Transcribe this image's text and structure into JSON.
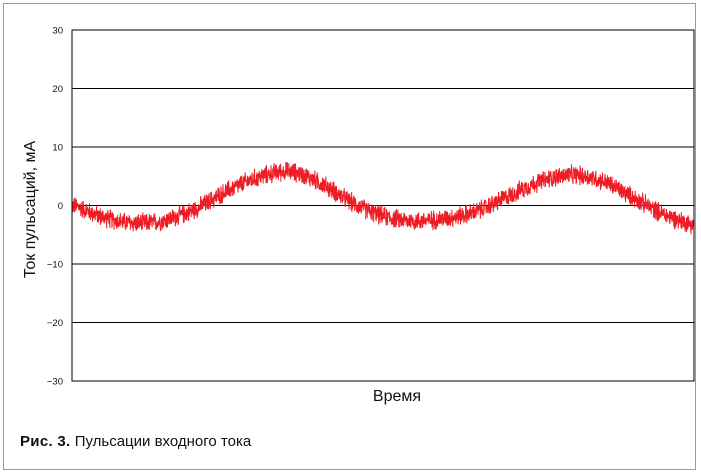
{
  "figure": {
    "label": "Рис. 3.",
    "caption": "Пульсации входного тока"
  },
  "colors": {
    "series": "#ee1c25",
    "grid": "#000000",
    "frame": "#9a9a9a"
  },
  "chart_data": {
    "type": "line",
    "title": "",
    "xlabel": "Время",
    "ylabel": "Ток пульсаций, мА",
    "ylim": [
      -30,
      30
    ],
    "yticks": [
      {
        "v": 30,
        "label": "30"
      },
      {
        "v": 20,
        "label": "20"
      },
      {
        "v": 10,
        "label": "10"
      },
      {
        "v": 0,
        "label": "0"
      },
      {
        "v": -10,
        "label": "−10"
      },
      {
        "v": -20,
        "label": "−20"
      },
      {
        "v": -30,
        "label": "−30"
      }
    ],
    "xlim": [
      0,
      1
    ],
    "grid": true,
    "legend": "none",
    "series": [
      {
        "x": [
          0,
          0.05,
          0.1,
          0.15,
          0.2,
          0.25,
          0.3,
          0.35,
          0.4,
          0.45,
          0.5,
          0.55,
          0.6,
          0.65,
          0.7,
          0.75,
          0.8,
          0.85,
          0.9,
          0.95,
          1.0
        ],
        "values": [
          0,
          -2,
          -3,
          -2.5,
          -0.5,
          2.5,
          4.8,
          5.8,
          3.8,
          0.5,
          -1.8,
          -2.6,
          -2.2,
          -1,
          1.5,
          4,
          5.2,
          4.3,
          1.5,
          -1.4,
          -3.2
        ],
        "noise_amplitude": 1.6
      }
    ]
  }
}
